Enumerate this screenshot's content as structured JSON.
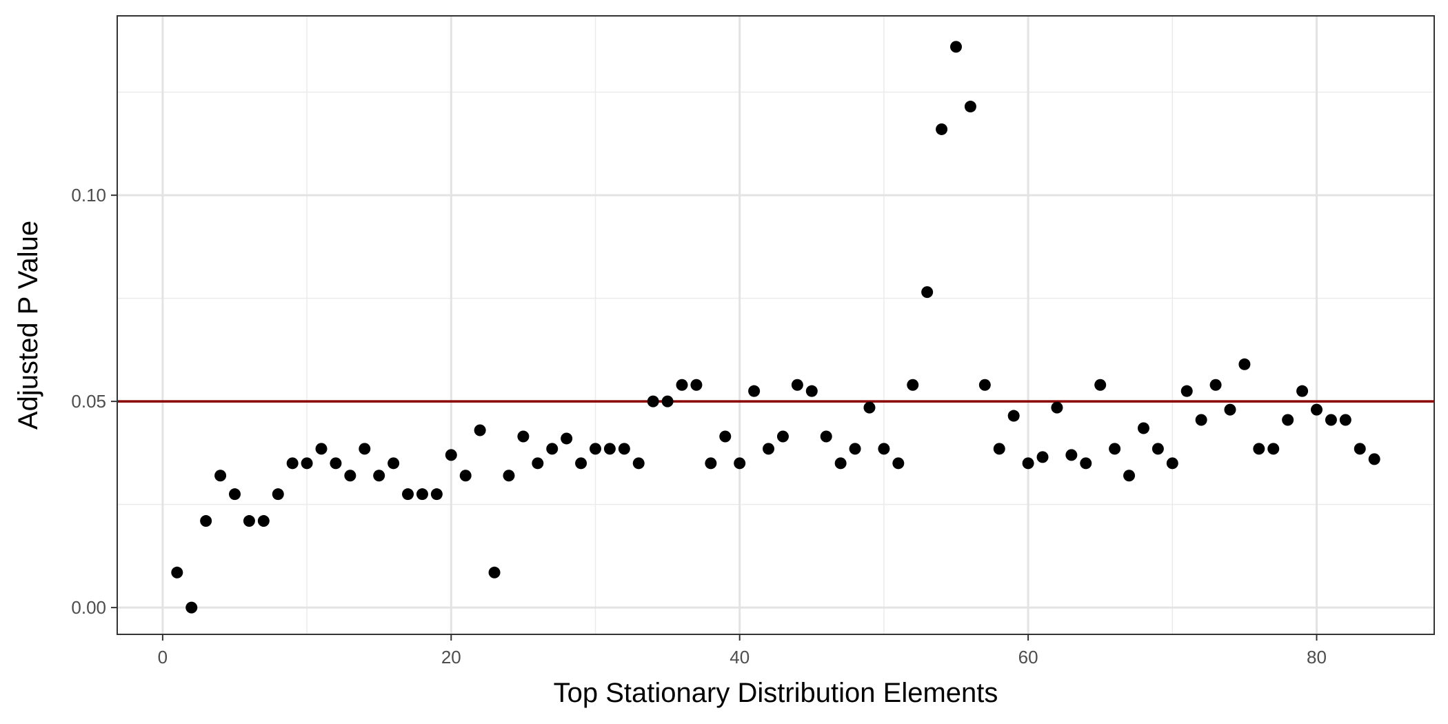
{
  "chart_data": {
    "type": "scatter",
    "title": "",
    "xlabel": "Top Stationary Distribution Elements",
    "ylabel": "Adjusted P Value",
    "xlim": [
      -3.15,
      88.15
    ],
    "ylim": [
      -0.0065,
      0.1435
    ],
    "x_major_ticks": [
      0,
      20,
      40,
      60,
      80
    ],
    "x_minor_ticks": [
      10,
      30,
      50,
      70
    ],
    "y_major_ticks": [
      0.0,
      0.05,
      0.1
    ],
    "y_minor_ticks": [
      0.025,
      0.075,
      0.125
    ],
    "x_tick_labels": [
      "0",
      "20",
      "40",
      "60",
      "80"
    ],
    "y_tick_labels": [
      "0.00",
      "0.05",
      "0.10"
    ],
    "grid": true,
    "reference_line": {
      "y": 0.05,
      "color": "#8B0000"
    },
    "point_color": "#000000",
    "x": [
      1,
      2,
      3,
      4,
      5,
      6,
      7,
      8,
      9,
      10,
      11,
      12,
      13,
      14,
      15,
      16,
      17,
      18,
      19,
      20,
      21,
      22,
      23,
      24,
      25,
      26,
      27,
      28,
      29,
      30,
      31,
      32,
      33,
      34,
      35,
      36,
      37,
      38,
      39,
      40,
      41,
      42,
      43,
      44,
      45,
      46,
      47,
      48,
      49,
      50,
      51,
      52,
      53,
      54,
      55,
      56,
      57,
      58,
      59,
      60,
      61,
      62,
      63,
      64,
      65,
      66,
      67,
      68,
      69,
      70,
      71,
      72,
      73,
      74,
      75,
      76,
      77,
      78,
      79,
      80,
      81,
      82,
      83,
      84
    ],
    "y": [
      0.0085,
      0.0,
      0.021,
      0.032,
      0.0275,
      0.021,
      0.021,
      0.0275,
      0.035,
      0.035,
      0.0385,
      0.035,
      0.032,
      0.0385,
      0.032,
      0.035,
      0.0275,
      0.0275,
      0.0275,
      0.037,
      0.032,
      0.043,
      0.0085,
      0.032,
      0.0415,
      0.035,
      0.0385,
      0.041,
      0.035,
      0.0385,
      0.0385,
      0.0385,
      0.035,
      0.05,
      0.05,
      0.054,
      0.054,
      0.035,
      0.0415,
      0.035,
      0.0525,
      0.0385,
      0.0415,
      0.054,
      0.0525,
      0.0415,
      0.035,
      0.0385,
      0.0485,
      0.0385,
      0.035,
      0.054,
      0.0765,
      0.116,
      0.136,
      0.1215,
      0.054,
      0.0385,
      0.0465,
      0.035,
      0.0365,
      0.0485,
      0.037,
      0.035,
      0.054,
      0.0385,
      0.032,
      0.0435,
      0.0385,
      0.035,
      0.0525,
      0.0455,
      0.054,
      0.048,
      0.059,
      0.0385,
      0.0385,
      0.0455,
      0.0525,
      0.048,
      0.0455,
      0.0455,
      0.0385,
      0.036
    ]
  }
}
